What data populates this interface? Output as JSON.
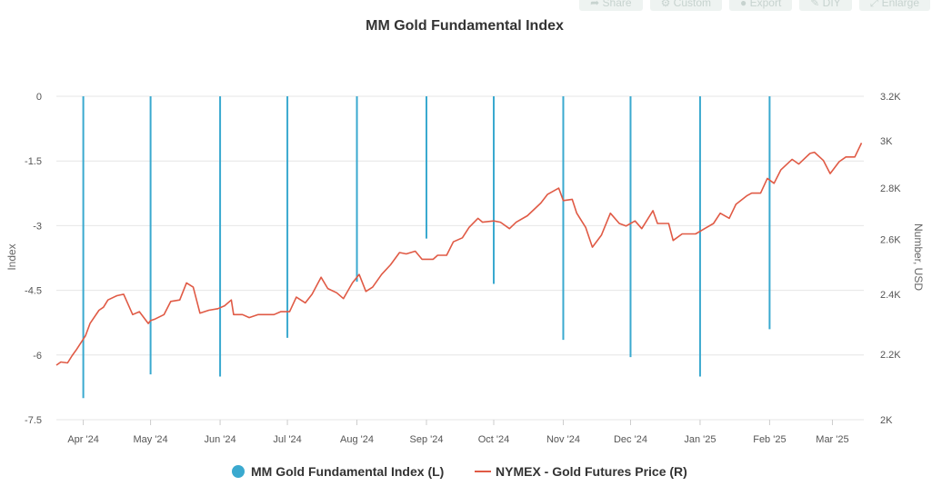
{
  "toolbar": {
    "share": "Share",
    "custom": "Custom",
    "export": "Export",
    "diy": "DIY",
    "enlarge": "Enlarge"
  },
  "colors": {
    "index_series": "#3aa9cf",
    "price_series": "#e05a45",
    "grid": "#e6e6e6",
    "text": "#555555"
  },
  "chart_data": {
    "type": "bar+line",
    "title": "MM Gold Fundamental Index",
    "left_axis": {
      "label": "Index",
      "range": [
        -7.5,
        0
      ],
      "ticks": [
        "0",
        "-1.5",
        "-3",
        "-4.5",
        "-6",
        "-7.5"
      ],
      "tick_values": [
        0,
        -1.5,
        -3,
        -4.5,
        -6,
        -7.5
      ]
    },
    "right_axis": {
      "label": "Number, USD",
      "scale": "log",
      "range": [
        2000,
        3200
      ],
      "ticks": [
        "3.2K",
        "3K",
        "2.8K",
        "2.6K",
        "2.4K",
        "2.2K",
        "2K"
      ],
      "tick_values": [
        3200,
        3000,
        2800,
        2600,
        2400,
        2200,
        2000
      ]
    },
    "x_axis": {
      "start": "2024-03-20",
      "end": "2025-03-15",
      "ticks": [
        "Apr '24",
        "May '24",
        "Jun '24",
        "Jul '24",
        "Aug '24",
        "Sep '24",
        "Oct '24",
        "Nov '24",
        "Dec '24",
        "Jan '25",
        "Feb '25",
        "Mar '25"
      ],
      "tick_dates": [
        "2024-04-01",
        "2024-05-01",
        "2024-06-01",
        "2024-07-01",
        "2024-08-01",
        "2024-09-01",
        "2024-10-01",
        "2024-11-01",
        "2024-12-01",
        "2025-01-01",
        "2025-02-01",
        "2025-03-01"
      ]
    },
    "legend": {
      "position": "bottom-center"
    },
    "series": [
      {
        "name": "MM Gold Fundamental Index (L)",
        "type": "bar",
        "axis": "left",
        "x": [
          "2024-04-01",
          "2024-05-01",
          "2024-06-01",
          "2024-07-01",
          "2024-08-01",
          "2024-09-01",
          "2024-10-01",
          "2024-11-01",
          "2024-12-01",
          "2025-01-01",
          "2025-02-01"
        ],
        "values": [
          -7.0,
          -6.45,
          -6.5,
          -5.6,
          -4.3,
          -3.3,
          -4.35,
          -5.65,
          -6.05,
          -6.5,
          -5.4
        ]
      },
      {
        "name": "NYMEX - Gold Futures Price (R)",
        "type": "line",
        "axis": "right",
        "x": [
          "2024-03-20",
          "2024-03-22",
          "2024-03-25",
          "2024-03-27",
          "2024-03-29",
          "2024-04-02",
          "2024-04-04",
          "2024-04-08",
          "2024-04-10",
          "2024-04-12",
          "2024-04-16",
          "2024-04-19",
          "2024-04-23",
          "2024-04-26",
          "2024-04-30",
          "2024-05-01",
          "2024-05-03",
          "2024-05-07",
          "2024-05-10",
          "2024-05-14",
          "2024-05-17",
          "2024-05-20",
          "2024-05-23",
          "2024-05-27",
          "2024-05-31",
          "2024-06-03",
          "2024-06-06",
          "2024-06-07",
          "2024-06-11",
          "2024-06-14",
          "2024-06-18",
          "2024-06-21",
          "2024-06-25",
          "2024-06-28",
          "2024-07-02",
          "2024-07-05",
          "2024-07-09",
          "2024-07-12",
          "2024-07-16",
          "2024-07-19",
          "2024-07-23",
          "2024-07-26",
          "2024-07-30",
          "2024-08-02",
          "2024-08-05",
          "2024-08-08",
          "2024-08-12",
          "2024-08-16",
          "2024-08-20",
          "2024-08-23",
          "2024-08-27",
          "2024-08-30",
          "2024-09-04",
          "2024-09-06",
          "2024-09-10",
          "2024-09-13",
          "2024-09-17",
          "2024-09-20",
          "2024-09-24",
          "2024-09-26",
          "2024-10-01",
          "2024-10-04",
          "2024-10-08",
          "2024-10-11",
          "2024-10-16",
          "2024-10-22",
          "2024-10-25",
          "2024-10-30",
          "2024-11-01",
          "2024-11-05",
          "2024-11-07",
          "2024-11-11",
          "2024-11-14",
          "2024-11-18",
          "2024-11-22",
          "2024-11-26",
          "2024-11-29",
          "2024-12-03",
          "2024-12-06",
          "2024-12-11",
          "2024-12-13",
          "2024-12-18",
          "2024-12-20",
          "2024-12-24",
          "2024-12-30",
          "2025-01-03",
          "2025-01-07",
          "2025-01-10",
          "2025-01-14",
          "2025-01-17",
          "2025-01-22",
          "2025-01-24",
          "2025-01-28",
          "2025-01-31",
          "2025-02-03",
          "2025-02-06",
          "2025-02-11",
          "2025-02-14",
          "2025-02-19",
          "2025-02-21",
          "2025-02-25",
          "2025-02-28",
          "2025-03-04",
          "2025-03-07",
          "2025-03-11",
          "2025-03-14"
        ],
        "values": [
          2165,
          2175,
          2172,
          2195,
          2215,
          2260,
          2300,
          2345,
          2355,
          2380,
          2395,
          2400,
          2330,
          2340,
          2300,
          2310,
          2315,
          2330,
          2375,
          2380,
          2440,
          2425,
          2335,
          2345,
          2350,
          2360,
          2380,
          2330,
          2330,
          2320,
          2330,
          2330,
          2330,
          2340,
          2340,
          2390,
          2370,
          2400,
          2460,
          2420,
          2405,
          2385,
          2440,
          2470,
          2410,
          2425,
          2470,
          2505,
          2550,
          2545,
          2555,
          2525,
          2525,
          2540,
          2540,
          2590,
          2605,
          2645,
          2680,
          2665,
          2670,
          2665,
          2640,
          2665,
          2690,
          2740,
          2775,
          2800,
          2750,
          2755,
          2700,
          2645,
          2570,
          2615,
          2700,
          2660,
          2650,
          2670,
          2640,
          2710,
          2660,
          2660,
          2595,
          2620,
          2620,
          2640,
          2660,
          2700,
          2680,
          2735,
          2770,
          2780,
          2780,
          2840,
          2820,
          2875,
          2920,
          2900,
          2945,
          2950,
          2915,
          2860,
          2910,
          2930,
          2930,
          2990
        ]
      }
    ]
  }
}
